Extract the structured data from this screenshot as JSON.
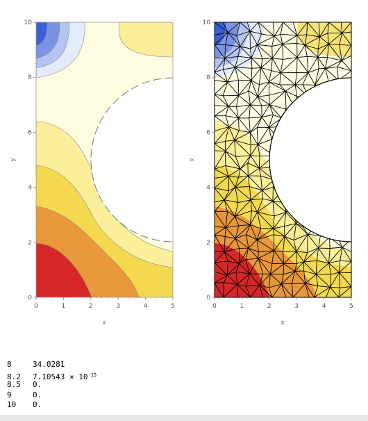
{
  "chart_data": [
    {
      "type": "contour",
      "xlabel": "x",
      "ylabel": "y",
      "xlim": [
        0,
        5
      ],
      "ylim": [
        0,
        10
      ],
      "xticks": [
        "0",
        "1",
        "2",
        "3",
        "4",
        "5"
      ],
      "yticks": [
        "0",
        "2",
        "4",
        "6",
        "8",
        "10"
      ],
      "hole": {
        "center": [
          5,
          5
        ],
        "radius": 3
      },
      "colors": [
        "#d62728",
        "#e8973a",
        "#f4d94f",
        "#fbef9a",
        "#fefde1",
        "#e4ebfa",
        "#b3c4f0",
        "#7a94e4",
        "#3b5fd9"
      ]
    },
    {
      "type": "mesh",
      "xlabel": "x",
      "ylabel": "y",
      "xlim": [
        0,
        5
      ],
      "ylim": [
        0,
        10
      ],
      "xticks": [
        "0",
        "1",
        "2",
        "3",
        "4",
        "5"
      ],
      "yticks": [
        "0",
        "2",
        "4",
        "6",
        "8",
        "10"
      ],
      "hole": {
        "center": [
          5,
          5
        ],
        "radius": 3
      }
    }
  ],
  "results": [
    {
      "key": "8",
      "value": "34.0281",
      "exponent": ""
    },
    {
      "key": "8.2",
      "value": "7.10543 × 10",
      "exponent": "-15"
    },
    {
      "key": "8.5",
      "value": "0.",
      "exponent": ""
    },
    {
      "key": "9",
      "value": "0.",
      "exponent": ""
    },
    {
      "key": "10",
      "value": "0.",
      "exponent": ""
    }
  ]
}
